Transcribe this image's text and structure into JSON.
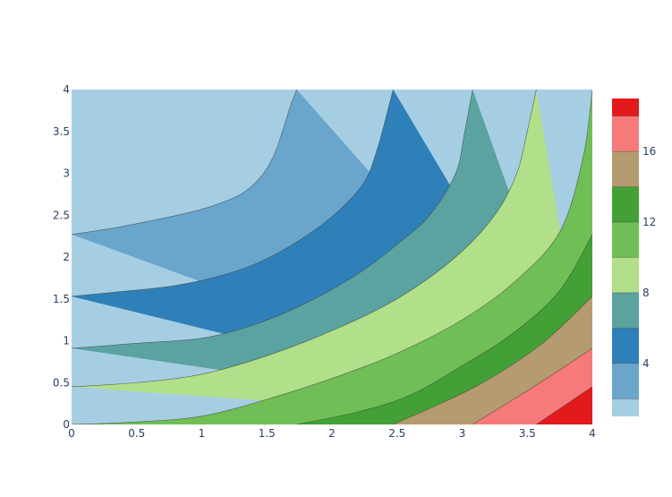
{
  "chart_data": {
    "type": "contour",
    "x_range": [
      0,
      4
    ],
    "y_range": [
      0,
      4
    ],
    "x_ticks": [
      0,
      0.5,
      1,
      1.5,
      2,
      2.5,
      3,
      3.5,
      4
    ],
    "x_tick_labels": [
      "0",
      "0.5",
      "1",
      "1.5",
      "2",
      "2.5",
      "3",
      "3.5",
      "4"
    ],
    "y_ticks": [
      0,
      0.5,
      1,
      1.5,
      2,
      2.5,
      3,
      3.5,
      4
    ],
    "y_tick_labels": [
      "0",
      "0.5",
      "1",
      "1.5",
      "2",
      "2.5",
      "3",
      "3.5",
      "4"
    ],
    "grid": false,
    "colorbar": {
      "placement": "right",
      "range": [
        1,
        19
      ],
      "ticks": [
        4,
        8,
        12,
        16
      ],
      "tick_labels": [
        "4",
        "8",
        "12",
        "16"
      ],
      "bands": [
        {
          "from": 1,
          "to": 2,
          "color": "#a6cee3"
        },
        {
          "from": 2,
          "to": 4,
          "color": "#6aa6cc"
        },
        {
          "from": 4,
          "to": 6,
          "color": "#2f80b9"
        },
        {
          "from": 6,
          "to": 8,
          "color": "#5ba3a1"
        },
        {
          "from": 8,
          "to": 10,
          "color": "#b2df8a"
        },
        {
          "from": 10,
          "to": 12,
          "color": "#70be56"
        },
        {
          "from": 12,
          "to": 14,
          "color": "#43a036"
        },
        {
          "from": 14,
          "to": 16,
          "color": "#b59b70"
        },
        {
          "from": 16,
          "to": 18,
          "color": "#f67a7a"
        },
        {
          "from": 18,
          "to": 19,
          "color": "#e31a1c"
        }
      ]
    },
    "contours": [
      {
        "level": 2,
        "points": [
          [
            0,
            2.27
          ],
          [
            0.3,
            2.34
          ],
          [
            0.6,
            2.43
          ],
          [
            0.9,
            2.53
          ],
          [
            1.1,
            2.62
          ],
          [
            1.3,
            2.75
          ],
          [
            1.45,
            2.95
          ],
          [
            1.55,
            3.2
          ],
          [
            1.62,
            3.5
          ],
          [
            1.68,
            3.8
          ],
          [
            1.73,
            4
          ]
        ]
      },
      {
        "level": 4,
        "points": [
          [
            0,
            1.53
          ],
          [
            0.4,
            1.59
          ],
          [
            0.8,
            1.66
          ],
          [
            1.2,
            1.8
          ],
          [
            1.5,
            1.98
          ],
          [
            1.8,
            2.25
          ],
          [
            2.05,
            2.55
          ],
          [
            2.25,
            2.9
          ],
          [
            2.35,
            3.3
          ],
          [
            2.42,
            3.7
          ],
          [
            2.47,
            4
          ]
        ]
      },
      {
        "level": 6,
        "points": [
          [
            0,
            0.91
          ],
          [
            0.5,
            0.97
          ],
          [
            1,
            1.03
          ],
          [
            1.4,
            1.19
          ],
          [
            1.8,
            1.45
          ],
          [
            2.2,
            1.8
          ],
          [
            2.5,
            2.15
          ],
          [
            2.75,
            2.5
          ],
          [
            2.95,
            3.0
          ],
          [
            3.02,
            3.5
          ],
          [
            3.08,
            4
          ]
        ]
      },
      {
        "level": 8,
        "points": [
          [
            0,
            0.45
          ],
          [
            0.5,
            0.5
          ],
          [
            1,
            0.6
          ],
          [
            1.5,
            0.82
          ],
          [
            2,
            1.12
          ],
          [
            2.5,
            1.5
          ],
          [
            2.95,
            2.0
          ],
          [
            3.25,
            2.5
          ],
          [
            3.42,
            3.0
          ],
          [
            3.5,
            3.5
          ],
          [
            3.57,
            4
          ]
        ]
      },
      {
        "level": 10,
        "points": [
          [
            0,
            0
          ],
          [
            0.5,
            0.03
          ],
          [
            1,
            0.1
          ],
          [
            1.5,
            0.3
          ],
          [
            2,
            0.55
          ],
          [
            2.5,
            0.85
          ],
          [
            3,
            1.25
          ],
          [
            3.4,
            1.7
          ],
          [
            3.75,
            2.3
          ],
          [
            3.93,
            3.2
          ],
          [
            4,
            4
          ]
        ]
      },
      {
        "level": 12,
        "points": [
          [
            1.73,
            0
          ],
          [
            2.2,
            0.15
          ],
          [
            2.6,
            0.35
          ],
          [
            3,
            0.7
          ],
          [
            3.4,
            1.1
          ],
          [
            3.75,
            1.6
          ],
          [
            4,
            2.27
          ]
        ]
      },
      {
        "level": 14,
        "points": [
          [
            2.47,
            0
          ],
          [
            3.1,
            0.45
          ],
          [
            3.6,
            0.95
          ],
          [
            4,
            1.53
          ]
        ]
      },
      {
        "level": 16,
        "points": [
          [
            3.08,
            0
          ],
          [
            3.55,
            0.45
          ],
          [
            4,
            0.91
          ]
        ]
      },
      {
        "level": 18,
        "points": [
          [
            3.57,
            0
          ],
          [
            4,
            0.45
          ]
        ]
      }
    ]
  }
}
